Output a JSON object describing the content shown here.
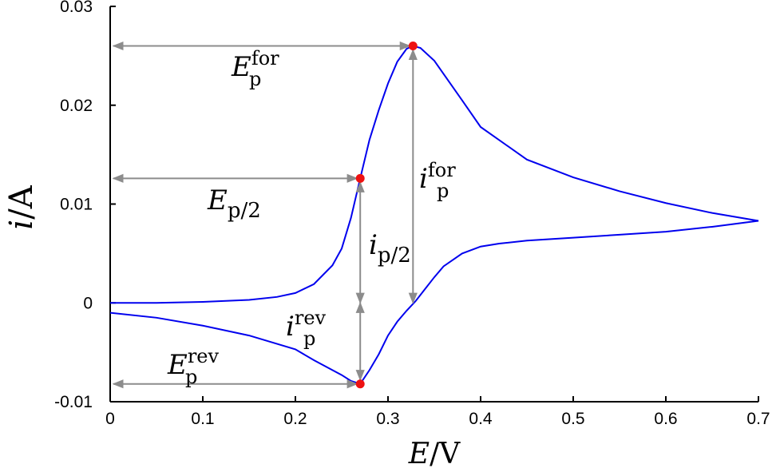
{
  "chart_data": {
    "type": "line",
    "xlabel": {
      "symbol": "E",
      "unit": "/V"
    },
    "ylabel": {
      "symbol": "i",
      "unit": "/A"
    },
    "xlim": [
      0,
      0.7
    ],
    "ylim": [
      -0.01,
      0.03
    ],
    "xticks": [
      0,
      0.1,
      0.2,
      0.3,
      0.4,
      0.5,
      0.6,
      0.7
    ],
    "yticks": [
      -0.01,
      0,
      0.01,
      0.02,
      0.03
    ],
    "x": [
      0,
      0.05,
      0.1,
      0.15,
      0.18,
      0.2,
      0.22,
      0.24,
      0.25,
      0.26,
      0.27,
      0.28,
      0.29,
      0.3,
      0.31,
      0.32,
      0.327,
      0.335,
      0.35,
      0.38,
      0.4,
      0.45,
      0.5,
      0.55,
      0.6,
      0.65,
      0.7,
      0.65,
      0.6,
      0.55,
      0.5,
      0.45,
      0.42,
      0.4,
      0.38,
      0.36,
      0.35,
      0.34,
      0.33,
      0.32,
      0.31,
      0.3,
      0.29,
      0.28,
      0.27,
      0.26,
      0.25,
      0.22,
      0.2,
      0.15,
      0.1,
      0.05,
      0
    ],
    "series": [
      {
        "color": "#0000ee",
        "values": [
          0,
          0,
          0.0001,
          0.0003,
          0.0006,
          0.001,
          0.0019,
          0.0038,
          0.0055,
          0.0086,
          0.0126,
          0.0165,
          0.0195,
          0.0222,
          0.0244,
          0.0257,
          0.026,
          0.0258,
          0.0245,
          0.0205,
          0.0178,
          0.0145,
          0.0127,
          0.0113,
          0.0101,
          0.0091,
          0.0083,
          0.0077,
          0.0072,
          0.0069,
          0.0066,
          0.0063,
          0.006,
          0.0057,
          0.005,
          0.0037,
          0.0026,
          0.0014,
          0.0002,
          -0.0008,
          -0.0019,
          -0.0033,
          -0.0052,
          -0.0068,
          -0.0082,
          -0.0079,
          -0.0073,
          -0.0058,
          -0.0047,
          -0.0033,
          -0.0023,
          -0.0015,
          -0.001
        ]
      }
    ],
    "marker_color": "#ee1111",
    "arrow_color": "#8c8c8c",
    "markers": [
      {
        "x": 0.327,
        "y": 0.026,
        "e_label": {
          "main": "E",
          "sub": "p",
          "sup": "for"
        },
        "i_label": {
          "main": "i",
          "sub": "p",
          "sup": "for"
        }
      },
      {
        "x": 0.27,
        "y": 0.0126,
        "e_label": {
          "main": "E",
          "sub": "p/2"
        },
        "i_label": {
          "main": "i",
          "sub": "p/2"
        }
      },
      {
        "x": 0.27,
        "y": -0.0082,
        "e_label": {
          "main": "E",
          "sub": "p",
          "sup": "rev"
        },
        "i_label": {
          "main": "i",
          "sub": "p",
          "sup": "rev"
        }
      }
    ]
  }
}
